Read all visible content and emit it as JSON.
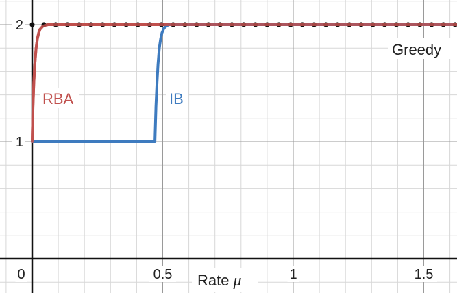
{
  "chart_data": {
    "type": "line",
    "title": "",
    "xlabel": "Rate",
    "xlabel_symbol": "μ",
    "ylabel": "",
    "xlim": [
      0,
      1.63
    ],
    "ylim": [
      0,
      2.1
    ],
    "x_ticks": [
      {
        "value": 0,
        "label": "0"
      },
      {
        "value": 0.5,
        "label": "0.5"
      },
      {
        "value": 1,
        "label": "1"
      },
      {
        "value": 1.5,
        "label": "1.5"
      }
    ],
    "y_ticks": [
      {
        "value": 1,
        "label": "1"
      },
      {
        "value": 2,
        "label": "2"
      }
    ],
    "grid": true,
    "grid_minor_x_step": 0.1,
    "grid_minor_y_step": 0.2,
    "series": [
      {
        "name": "RBA",
        "color": "#c0504d",
        "x": [
          0,
          0.003,
          0.006,
          0.01,
          0.015,
          0.02,
          0.025,
          0.03,
          0.04,
          0.05,
          0.06,
          0.08,
          1.63
        ],
        "y": [
          1,
          1.3,
          1.5,
          1.66,
          1.8,
          1.88,
          1.93,
          1.96,
          1.985,
          1.995,
          2,
          2,
          2
        ]
      },
      {
        "name": "IB",
        "color": "#3e7bbf",
        "x": [
          0,
          0.47,
          0.474,
          0.478,
          0.482,
          0.487,
          0.492,
          0.497,
          0.505,
          0.515,
          0.525,
          0.54,
          1.63
        ],
        "y": [
          1,
          1,
          1.3,
          1.5,
          1.66,
          1.8,
          1.88,
          1.93,
          1.97,
          1.99,
          2,
          2,
          2
        ]
      },
      {
        "name": "Greedy",
        "color": "#111111",
        "marker": "dot",
        "x_start": 0,
        "x_end": 1.63,
        "x_step": 0.045,
        "y": 2
      }
    ]
  },
  "labels": {
    "rba": "RBA",
    "ib": "IB",
    "greedy": "Greedy"
  }
}
